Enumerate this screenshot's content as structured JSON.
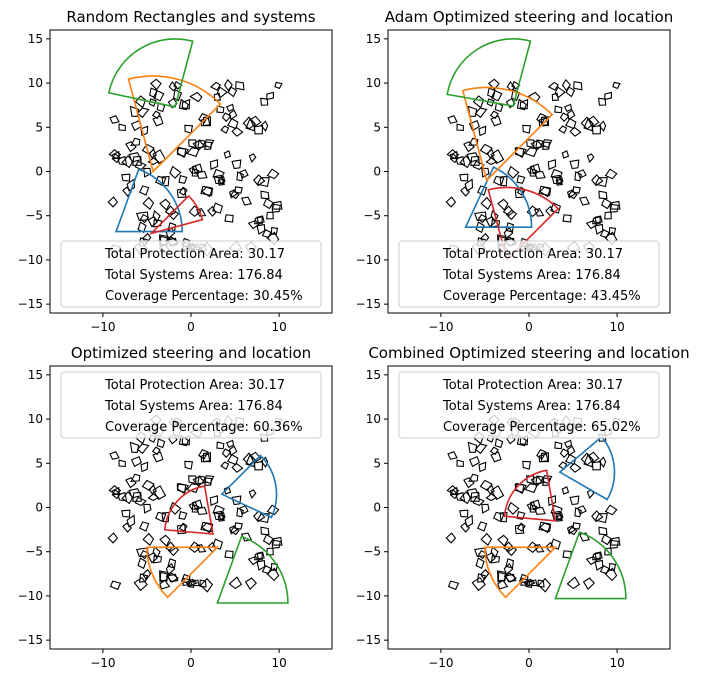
{
  "chart_data": [
    {
      "type": "scatter",
      "title": "Random Rectangles and systems",
      "xlim": [
        -16,
        16
      ],
      "ylim": [
        -16,
        16
      ],
      "xticks": [
        -10,
        0,
        10
      ],
      "yticks": [
        -15,
        -10,
        -5,
        0,
        5,
        10,
        15
      ],
      "legend": {
        "placement": "lower-center",
        "entries": [
          "Total Protection Area: 30.17",
          "Total Systems Area: 176.84",
          "Coverage Percentage: 30.45%"
        ]
      },
      "sectors": [
        {
          "color": "#1f77b4",
          "apex": [
            -8.5,
            -6.8
          ],
          "radius": 7.5,
          "start_deg": 0,
          "end_deg": 70
        },
        {
          "color": "#ff7f0e",
          "apex": [
            -4.3,
            0.0
          ],
          "radius": 10.8,
          "start_deg": 45,
          "end_deg": 105
        },
        {
          "color": "#2ca02c",
          "apex": [
            -1.8,
            7.3
          ],
          "radius": 7.7,
          "start_deg": 75,
          "end_deg": 168
        },
        {
          "color": "#d62728",
          "apex": [
            -4.5,
            -7.0
          ],
          "radius": 6.0,
          "start_deg": 15,
          "end_deg": 45
        }
      ]
    },
    {
      "type": "scatter",
      "title": "Adam Optimized steering and location",
      "xlim": [
        -16,
        16
      ],
      "ylim": [
        -16,
        16
      ],
      "xticks": [
        -10,
        0,
        10
      ],
      "yticks": [
        -15,
        -10,
        -5,
        0,
        5,
        10,
        15
      ],
      "legend": {
        "placement": "lower-center",
        "entries": [
          "Total Protection Area: 30.17",
          "Total Systems Area: 176.84",
          "Coverage Percentage: 43.45%"
        ]
      },
      "sectors": [
        {
          "color": "#1f77b4",
          "apex": [
            -7.2,
            -6.3
          ],
          "radius": 7.5,
          "start_deg": 0,
          "end_deg": 65
        },
        {
          "color": "#ff7f0e",
          "apex": [
            -4.8,
            -1.0
          ],
          "radius": 10.5,
          "start_deg": 45,
          "end_deg": 105
        },
        {
          "color": "#2ca02c",
          "apex": [
            -1.8,
            7.4
          ],
          "radius": 7.6,
          "start_deg": 75,
          "end_deg": 170
        },
        {
          "color": "#d62728",
          "apex": [
            -2.5,
            -10.0
          ],
          "radius": 8.2,
          "start_deg": 45,
          "end_deg": 105
        }
      ]
    },
    {
      "type": "scatter",
      "title": "Optimized steering and location",
      "xlim": [
        -16,
        16
      ],
      "ylim": [
        -16,
        16
      ],
      "xticks": [
        -10,
        0,
        10
      ],
      "yticks": [
        -15,
        -10,
        -5,
        0,
        5,
        10,
        15
      ],
      "legend": {
        "placement": "top-center",
        "entries": [
          "Total Protection Area: 30.17",
          "Total Systems Area: 176.84",
          "Coverage Percentage: 60.36%"
        ]
      },
      "sectors": [
        {
          "color": "#1f77b4",
          "apex": [
            3.5,
            1.5
          ],
          "radius": 6.2,
          "start_deg": -25,
          "end_deg": 45
        },
        {
          "color": "#ff7f0e",
          "apex": [
            3.0,
            -4.5
          ],
          "radius": 8.0,
          "start_deg": 180,
          "end_deg": 225
        },
        {
          "color": "#2ca02c",
          "apex": [
            3.0,
            -10.8
          ],
          "radius": 8.0,
          "start_deg": 0,
          "end_deg": 70
        },
        {
          "color": "#d62728",
          "apex": [
            2.5,
            -3.0
          ],
          "radius": 5.5,
          "start_deg": 100,
          "end_deg": 175
        }
      ]
    },
    {
      "type": "scatter",
      "title": "Combined Optimized steering and location",
      "xlim": [
        -16,
        16
      ],
      "ylim": [
        -16,
        16
      ],
      "xticks": [
        -10,
        0,
        10
      ],
      "yticks": [
        -15,
        -10,
        -5,
        0,
        5,
        10,
        15
      ],
      "legend": {
        "placement": "top-center",
        "entries": [
          "Total Protection Area: 30.17",
          "Total Systems Area: 176.84",
          "Coverage Percentage: 65.02%"
        ]
      },
      "sectors": [
        {
          "color": "#1f77b4",
          "apex": [
            3.5,
            4.0
          ],
          "radius": 6.2,
          "start_deg": -30,
          "end_deg": 40
        },
        {
          "color": "#ff7f0e",
          "apex": [
            3.0,
            -4.5
          ],
          "radius": 8.0,
          "start_deg": 180,
          "end_deg": 225
        },
        {
          "color": "#2ca02c",
          "apex": [
            3.0,
            -10.3
          ],
          "radius": 8.0,
          "start_deg": 0,
          "end_deg": 70
        },
        {
          "color": "#d62728",
          "apex": [
            3.0,
            -1.5
          ],
          "radius": 5.8,
          "start_deg": 100,
          "end_deg": 175
        }
      ]
    }
  ]
}
